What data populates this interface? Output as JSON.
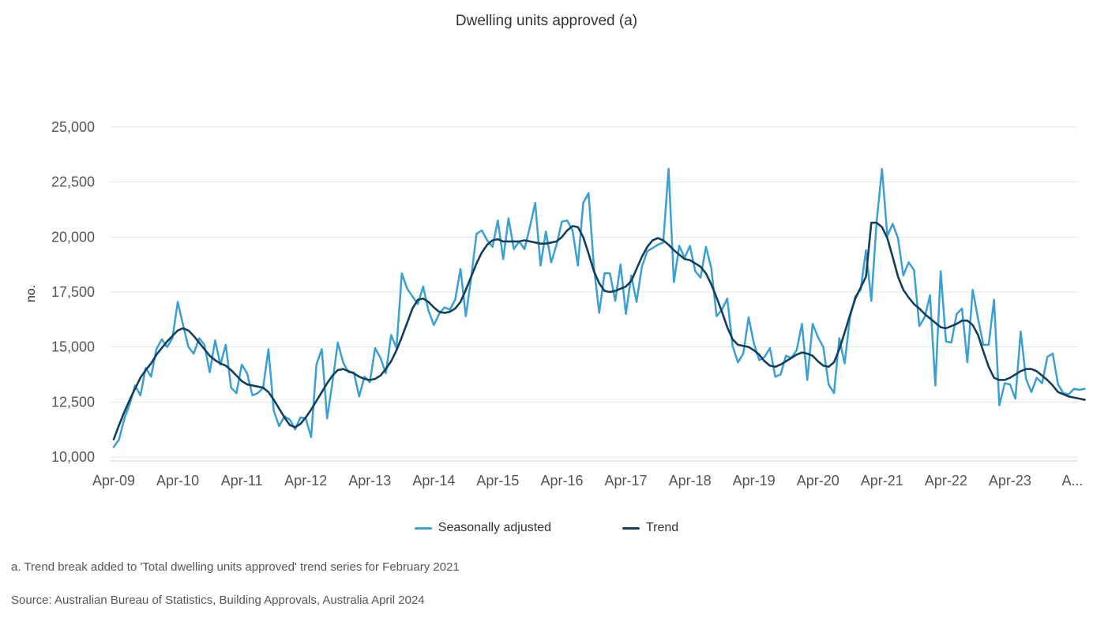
{
  "chart_data": {
    "type": "line",
    "title": "Dwelling units approved (a)",
    "ylabel": "no.",
    "xlabel": "",
    "ylim": [
      10000,
      25000
    ],
    "yticks": [
      10000,
      12500,
      15000,
      17500,
      20000,
      22500,
      25000
    ],
    "ytick_labels": [
      "10,000",
      "12,500",
      "15,000",
      "17,500",
      "20,000",
      "22,500",
      "25,000"
    ],
    "x_start": "Apr-09",
    "x_count": 181,
    "xtick_labels": [
      "Apr-09",
      "Apr-10",
      "Apr-11",
      "Apr-12",
      "Apr-13",
      "Apr-14",
      "Apr-15",
      "Apr-16",
      "Apr-17",
      "Apr-18",
      "Apr-19",
      "Apr-20",
      "Apr-21",
      "Apr-22",
      "Apr-23",
      "A..."
    ],
    "grid": true,
    "legend_position": "bottom",
    "series": [
      {
        "name": "Seasonally adjusted",
        "color": "#3a9fd2",
        "values": [
          10450,
          10800,
          11750,
          12400,
          13250,
          12800,
          14050,
          13650,
          14900,
          15350,
          15000,
          15400,
          17050,
          16000,
          15000,
          14700,
          15400,
          15100,
          13850,
          15300,
          14200,
          15100,
          13150,
          12900,
          14200,
          13800,
          12800,
          12900,
          13150,
          14900,
          12100,
          11400,
          11850,
          11700,
          11250,
          11800,
          11750,
          10900,
          14200,
          14900,
          11750,
          13400,
          15200,
          14300,
          13850,
          13850,
          12750,
          13650,
          13400,
          14950,
          14500,
          13800,
          15550,
          14950,
          18350,
          17650,
          17300,
          16950,
          17750,
          16650,
          16000,
          16500,
          16800,
          16700,
          17150,
          18550,
          16400,
          18150,
          20150,
          20300,
          19850,
          19550,
          20750,
          19000,
          20850,
          19450,
          19800,
          19450,
          20450,
          21550,
          18700,
          20250,
          18850,
          19650,
          20700,
          20750,
          20300,
          18700,
          21550,
          22000,
          18650,
          16550,
          18350,
          18350,
          17100,
          18750,
          16500,
          18250,
          17050,
          18650,
          19350,
          19500,
          19650,
          19750,
          23100,
          17950,
          19600,
          19050,
          19600,
          18450,
          18150,
          19550,
          18600,
          16400,
          16700,
          17200,
          15050,
          14300,
          14700,
          16350,
          15150,
          14400,
          14550,
          14950,
          13650,
          13750,
          14600,
          14500,
          14850,
          16050,
          13500,
          16050,
          15450,
          15000,
          13300,
          12900,
          15400,
          14250,
          16350,
          17300,
          17600,
          19400,
          17100,
          20700,
          23100,
          20050,
          20600,
          19950,
          18250,
          18850,
          18500,
          15950,
          16350,
          17350,
          13250,
          18450,
          15250,
          15200,
          16500,
          16750,
          14300,
          17600,
          16300,
          15100,
          15100,
          17150,
          12350,
          13350,
          13300,
          12650,
          15700,
          13550,
          12950,
          13600,
          13350,
          14550,
          14700,
          13300,
          12900,
          12850,
          13100,
          13050,
          13100
        ]
      },
      {
        "name": "Trend",
        "color": "#133f5c",
        "values": [
          10800,
          11450,
          12050,
          12600,
          13100,
          13600,
          13950,
          14250,
          14650,
          14950,
          15250,
          15500,
          15750,
          15850,
          15750,
          15500,
          15200,
          14900,
          14600,
          14400,
          14250,
          14150,
          13950,
          13700,
          13450,
          13300,
          13250,
          13200,
          13150,
          12950,
          12600,
          12200,
          11800,
          11450,
          11350,
          11500,
          11800,
          12150,
          12550,
          12950,
          13350,
          13700,
          13950,
          14000,
          13900,
          13800,
          13650,
          13550,
          13500,
          13550,
          13700,
          14000,
          14350,
          14850,
          15450,
          16100,
          16750,
          17150,
          17200,
          17050,
          16800,
          16600,
          16550,
          16600,
          16750,
          17050,
          17600,
          18200,
          18800,
          19300,
          19650,
          19850,
          19900,
          19800,
          19800,
          19800,
          19800,
          19850,
          19800,
          19750,
          19700,
          19700,
          19750,
          19800,
          20000,
          20300,
          20500,
          20450,
          20000,
          19250,
          18450,
          17900,
          17550,
          17500,
          17550,
          17650,
          17750,
          18000,
          18550,
          19100,
          19550,
          19850,
          19950,
          19850,
          19650,
          19400,
          19200,
          19000,
          18950,
          18800,
          18650,
          18350,
          17850,
          17250,
          16600,
          15900,
          15350,
          15100,
          15050,
          15000,
          14850,
          14650,
          14350,
          14150,
          14100,
          14200,
          14350,
          14500,
          14650,
          14750,
          14700,
          14600,
          14350,
          14150,
          14100,
          14300,
          14900,
          15650,
          16450,
          17200,
          17700,
          18200,
          20650,
          20650,
          20450,
          19950,
          19100,
          18200,
          17600,
          17250,
          16950,
          16750,
          16500,
          16300,
          16100,
          15900,
          15850,
          15950,
          16050,
          16200,
          16200,
          16000,
          15550,
          14800,
          14100,
          13600,
          13500,
          13500,
          13600,
          13750,
          13900,
          14000,
          14000,
          13900,
          13700,
          13500,
          13250,
          12950,
          12850,
          12750,
          12700,
          12650,
          12600
        ]
      }
    ],
    "footnote": "a. Trend break added to 'Total dwelling units approved' trend series for February 2021",
    "source": "Source: Australian Bureau of Statistics, Building Approvals, Australia April 2024"
  },
  "legend": {
    "seasonally_adjusted": "Seasonally adjusted",
    "trend": "Trend"
  }
}
